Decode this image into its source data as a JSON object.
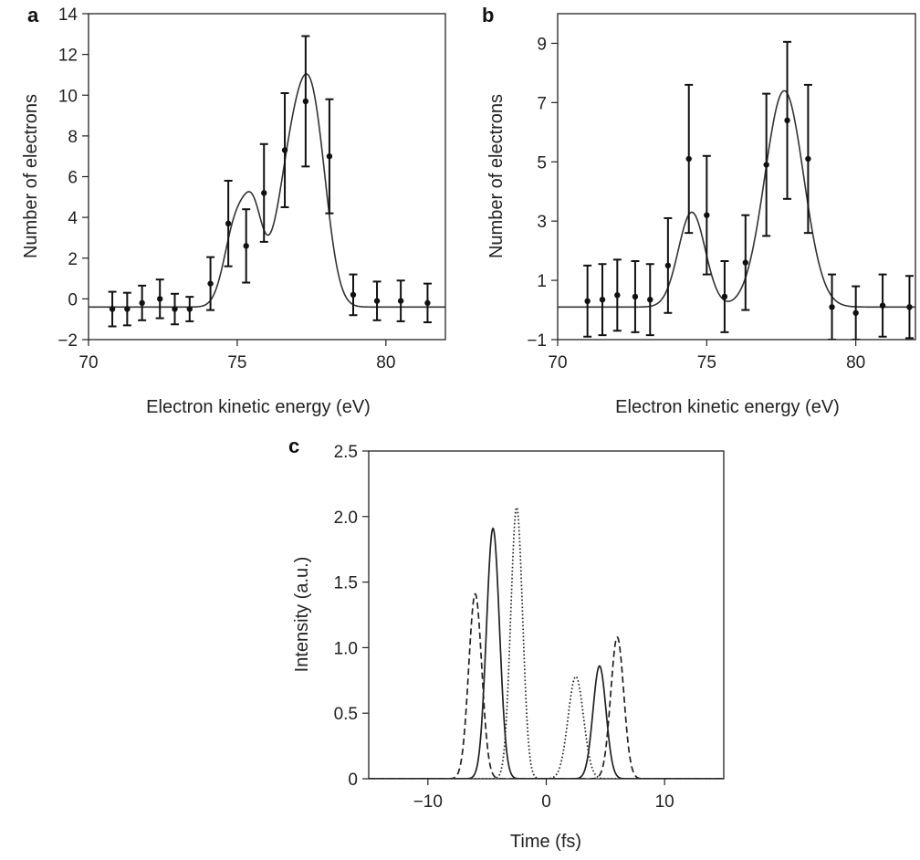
{
  "chart_data": [
    {
      "panel_label": "a",
      "type": "scatter",
      "xlabel": "Electron kinetic energy (eV)",
      "ylabel": "Number of electrons",
      "xlim": [
        70,
        82
      ],
      "ylim": [
        -2,
        14
      ],
      "xticks": [
        70,
        75,
        80
      ],
      "yticks": [
        -2,
        0,
        2,
        4,
        6,
        8,
        10,
        12,
        14
      ],
      "grid": false,
      "points": [
        {
          "x": 70.8,
          "y": -0.5,
          "err": 0.85
        },
        {
          "x": 71.3,
          "y": -0.5,
          "err": 0.8
        },
        {
          "x": 71.8,
          "y": -0.2,
          "err": 0.85
        },
        {
          "x": 72.4,
          "y": 0.0,
          "err": 0.95
        },
        {
          "x": 72.9,
          "y": -0.5,
          "err": 0.75
        },
        {
          "x": 73.4,
          "y": -0.5,
          "err": 0.6
        },
        {
          "x": 74.1,
          "y": 0.75,
          "err": 1.3
        },
        {
          "x": 74.7,
          "y": 3.7,
          "err": 2.1
        },
        {
          "x": 75.3,
          "y": 2.6,
          "err": 1.8
        },
        {
          "x": 75.9,
          "y": 5.2,
          "err": 2.4
        },
        {
          "x": 76.6,
          "y": 7.3,
          "err": 2.8
        },
        {
          "x": 77.3,
          "y": 9.7,
          "err": 3.2
        },
        {
          "x": 78.1,
          "y": 7.0,
          "err": 2.8
        },
        {
          "x": 78.9,
          "y": 0.2,
          "err": 1.0
        },
        {
          "x": 79.7,
          "y": -0.1,
          "err": 0.95
        },
        {
          "x": 80.5,
          "y": -0.1,
          "err": 1.0
        },
        {
          "x": 81.4,
          "y": -0.2,
          "err": 0.95
        }
      ],
      "fit": {
        "baseline": -0.4,
        "components": [
          {
            "center": 74.95,
            "amplitude": 4.0,
            "sigma": 0.38
          },
          {
            "center": 75.55,
            "amplitude": 3.9,
            "sigma": 0.32
          },
          {
            "center": 76.9,
            "amplitude": 7.6,
            "sigma": 0.55
          },
          {
            "center": 77.6,
            "amplitude": 7.0,
            "sigma": 0.45
          }
        ]
      }
    },
    {
      "panel_label": "b",
      "type": "scatter",
      "xlabel": "Electron kinetic energy (eV)",
      "ylabel": "Number of electrons",
      "xlim": [
        70,
        82
      ],
      "ylim": [
        -1,
        10
      ],
      "xticks": [
        70,
        75,
        80
      ],
      "yticks": [
        -1,
        1,
        3,
        5,
        7,
        9
      ],
      "grid": false,
      "points": [
        {
          "x": 71.0,
          "y": 0.3,
          "err": 1.2
        },
        {
          "x": 71.5,
          "y": 0.35,
          "err": 1.2
        },
        {
          "x": 72.0,
          "y": 0.5,
          "err": 1.2
        },
        {
          "x": 72.6,
          "y": 0.45,
          "err": 1.2
        },
        {
          "x": 73.1,
          "y": 0.35,
          "err": 1.2
        },
        {
          "x": 73.7,
          "y": 1.5,
          "err": 1.6
        },
        {
          "x": 74.4,
          "y": 5.1,
          "err": 2.5
        },
        {
          "x": 75.0,
          "y": 3.2,
          "err": 2.0
        },
        {
          "x": 75.6,
          "y": 0.45,
          "err": 1.2
        },
        {
          "x": 76.3,
          "y": 1.6,
          "err": 1.6
        },
        {
          "x": 77.0,
          "y": 4.9,
          "err": 2.4
        },
        {
          "x": 77.7,
          "y": 6.4,
          "err": 2.65
        },
        {
          "x": 78.4,
          "y": 5.1,
          "err": 2.5
        },
        {
          "x": 79.2,
          "y": 0.1,
          "err": 1.1
        },
        {
          "x": 80.0,
          "y": -0.1,
          "err": 0.9
        },
        {
          "x": 80.9,
          "y": 0.15,
          "err": 1.05
        },
        {
          "x": 81.8,
          "y": 0.1,
          "err": 1.05
        }
      ],
      "fit": {
        "baseline": 0.1,
        "components": [
          {
            "center": 74.5,
            "amplitude": 3.2,
            "sigma": 0.45
          },
          {
            "center": 77.6,
            "amplitude": 7.3,
            "sigma": 0.65
          }
        ]
      }
    },
    {
      "panel_label": "c",
      "type": "line",
      "xlabel": "Time (fs)",
      "ylabel": "Intensity (a.u.)",
      "xlim": [
        -15,
        15
      ],
      "ylim": [
        0,
        2.5
      ],
      "xticks": [
        -10,
        0,
        10
      ],
      "xtick_labels": [
        "−10",
        "0",
        "10"
      ],
      "yticks": [
        0,
        0.5,
        1.0,
        1.5,
        2.0,
        2.5
      ],
      "ytick_labels": [
        "0",
        "0.5",
        "1.0",
        "1.5",
        "2.0",
        "2.5"
      ],
      "grid": false,
      "series": [
        {
          "style": "solid",
          "pulses": [
            {
              "center": -4.5,
              "amplitude": 1.91,
              "sigma": 0.55
            },
            {
              "center": 4.5,
              "amplitude": 0.86,
              "sigma": 0.55
            }
          ]
        },
        {
          "style": "dashed",
          "pulses": [
            {
              "center": -6.0,
              "amplitude": 1.41,
              "sigma": 0.55
            },
            {
              "center": 6.0,
              "amplitude": 1.08,
              "sigma": 0.55
            }
          ]
        },
        {
          "style": "dotted",
          "pulses": [
            {
              "center": -2.5,
              "amplitude": 2.07,
              "sigma": 0.5
            },
            {
              "center": 2.5,
              "amplitude": 0.78,
              "sigma": 0.65
            }
          ]
        }
      ]
    }
  ]
}
